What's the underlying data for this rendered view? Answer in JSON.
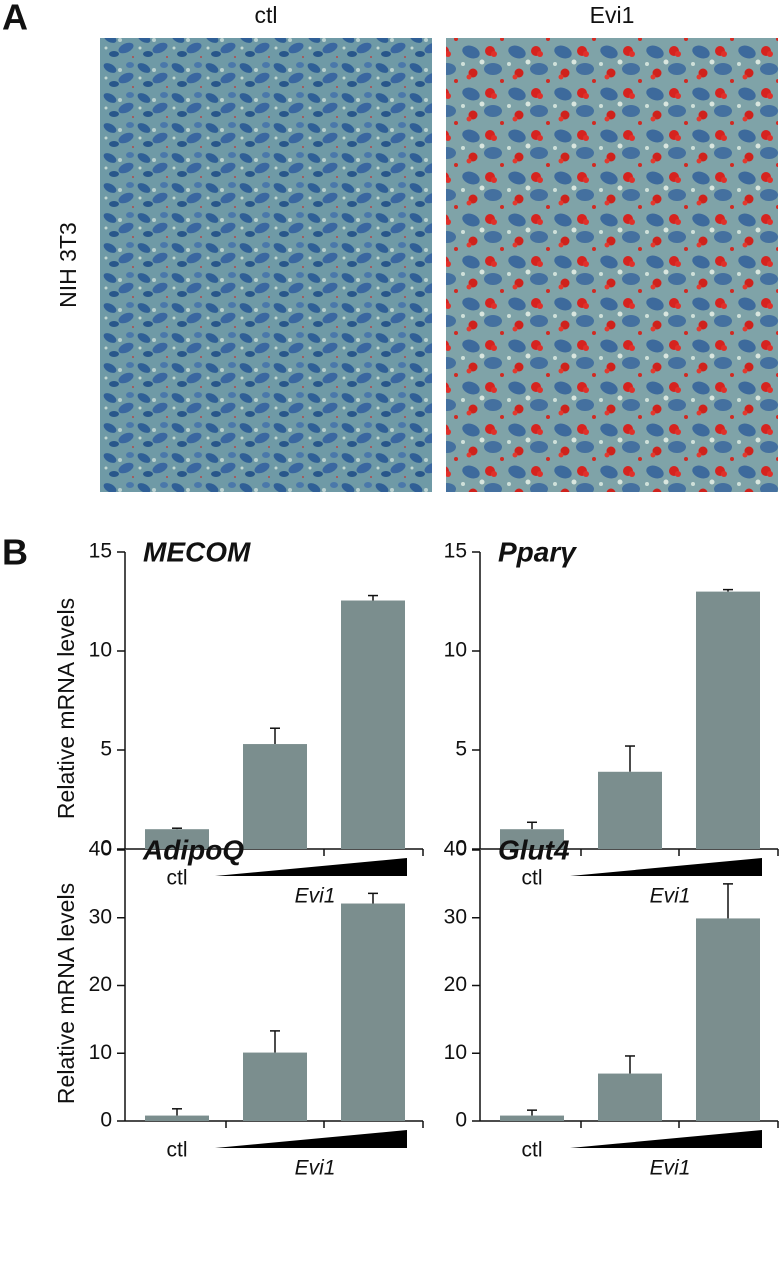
{
  "panels": {
    "a": {
      "label": "A",
      "columns": [
        "ctl",
        "Evi1"
      ],
      "row_label": "NIH 3T3"
    },
    "b": {
      "label": "B"
    }
  },
  "chart_data": [
    {
      "type": "bar",
      "title": "MECOM",
      "y_label": "Relative mRNA levels",
      "categories": [
        "ctl",
        null,
        null
      ],
      "group_label": "Evi1",
      "values": [
        1.0,
        5.3,
        12.55
      ],
      "errors": [
        0.05,
        0.8,
        0.25
      ],
      "color": "#7b8e8e",
      "ylim": [
        0,
        15
      ],
      "yticks": [
        0,
        5,
        10,
        15
      ]
    },
    {
      "type": "bar",
      "title": "Pparγ",
      "categories": [
        "ctl",
        null,
        null
      ],
      "group_label": "Evi1",
      "values": [
        1.0,
        3.9,
        13.0
      ],
      "errors": [
        0.35,
        1.3,
        0.1
      ],
      "color": "#7b8e8e",
      "ylim": [
        0,
        15
      ],
      "yticks": [
        0,
        5,
        10,
        15
      ]
    },
    {
      "type": "bar",
      "title": "AdipoQ",
      "y_label": "Relative mRNA levels",
      "categories": [
        "ctl",
        null,
        null
      ],
      "group_label": "Evi1",
      "values": [
        0.8,
        10.1,
        32.1
      ],
      "errors": [
        1.0,
        3.2,
        1.5
      ],
      "color": "#7b8e8e",
      "ylim": [
        0,
        40
      ],
      "yticks": [
        0,
        10,
        20,
        30,
        40
      ]
    },
    {
      "type": "bar",
      "title": "Glut4",
      "categories": [
        "ctl",
        null,
        null
      ],
      "group_label": "Evi1",
      "values": [
        0.8,
        7.0,
        29.9
      ],
      "errors": [
        0.8,
        2.6,
        5.1
      ],
      "color": "#7b8e8e",
      "ylim": [
        0,
        40
      ],
      "yticks": [
        0,
        10,
        20,
        30,
        40
      ]
    }
  ]
}
